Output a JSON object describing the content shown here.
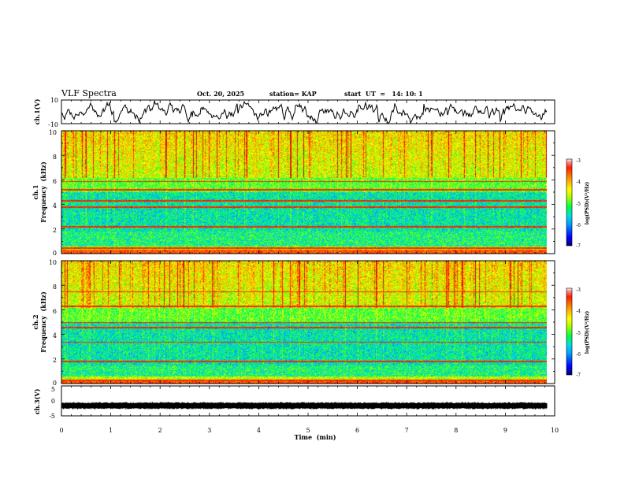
{
  "header": {
    "title": "VLF Spectra",
    "date": "Oct. 20, 2025",
    "station": "station= KAP",
    "start_ut": "start  UT  =   14: 10: 1"
  },
  "colors": {
    "axis": "#000000",
    "waveform": "#000000",
    "colormap": [
      "#000080",
      "#0000ff",
      "#00a0ff",
      "#00e0e0",
      "#00ff60",
      "#a0ff00",
      "#ffff00",
      "#ffa000",
      "#ff3000",
      "#e00000",
      "#ffffff"
    ]
  },
  "chart_data": [
    {
      "type": "line",
      "name": "ch1-waveform",
      "ylabel": "ch.1(V)",
      "ylim": [
        -10,
        10
      ],
      "yticks": [
        "10",
        "-10"
      ],
      "xlim": [
        0,
        10
      ]
    },
    {
      "type": "heatmap",
      "name": "ch1-spectrogram",
      "ylabel_top": "ch.1",
      "ylabel": "Frequency  (kHz)",
      "ylim": [
        0,
        10
      ],
      "yticks": [
        "0",
        "2",
        "4",
        "6",
        "8",
        "10"
      ],
      "xlim": [
        0,
        10
      ],
      "colorbar": {
        "label": "log(PSD)(V²/Hz)",
        "range": [
          -7,
          -3
        ],
        "ticks": [
          "-3",
          "-4",
          "-5",
          "-6",
          "-7"
        ]
      }
    },
    {
      "type": "heatmap",
      "name": "ch2-spectrogram",
      "ylabel_top": "ch.2",
      "ylabel": "Frequency  (kHz)",
      "ylim": [
        0,
        10
      ],
      "yticks": [
        "0",
        "2",
        "4",
        "6",
        "8",
        "10"
      ],
      "xlim": [
        0,
        10
      ],
      "colorbar": {
        "label": "log(PSD)(V²/Hz)",
        "range": [
          -7,
          -3
        ],
        "ticks": [
          "-3",
          "-4",
          "-5",
          "-6",
          "-7"
        ]
      }
    },
    {
      "type": "line",
      "name": "ch3-waveform",
      "ylabel": "ch.3(V)",
      "ylim": [
        -5,
        5
      ],
      "yticks": [
        "5",
        "0",
        "-5"
      ],
      "xlim": [
        0,
        10
      ]
    }
  ],
  "xaxis": {
    "label": "Time  (min)",
    "range": [
      0,
      10
    ],
    "ticks": [
      "0",
      "1",
      "2",
      "3",
      "4",
      "5",
      "6",
      "7",
      "8",
      "9",
      "10"
    ]
  }
}
